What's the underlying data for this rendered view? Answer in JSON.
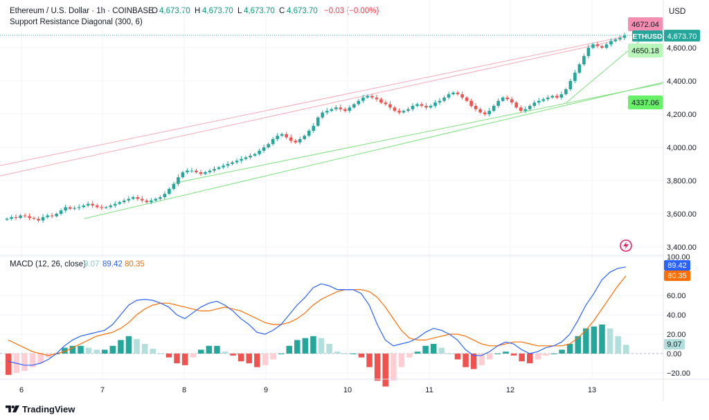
{
  "header": {
    "symbol_line": "Ethereum / U.S. Dollar · 1h · COINBASE",
    "open_label": "O",
    "open": "4,673.70",
    "high_label": "H",
    "high": "4,673.70",
    "low_label": "L",
    "low": "4,673.70",
    "close_label": "C",
    "close": "4,673.70",
    "change": "−0.03 (−0.00%)",
    "indicator": "Support Resistance Diagonal (300, 6)",
    "currency": "USD"
  },
  "price_axis": {
    "ticks": [
      3400,
      3600,
      3800,
      4000,
      4200,
      4400,
      4600
    ],
    "tick_labels": [
      "3,400.00",
      "3,600.00",
      "3,800.00",
      "4,000.00",
      "4,200.00",
      "4,400.00",
      "4,600.00"
    ]
  },
  "price_tags": {
    "resistance": "4672.04",
    "ticker": "ETHUSD",
    "last": "4,673.70",
    "support_upper": "4650.18",
    "support_lower": "4337.06"
  },
  "macd": {
    "label": "MACD (12, 26, close)",
    "hist_value": "9.07",
    "macd_value": "89.42",
    "signal_value": "80.35",
    "ticks": [
      -20,
      0,
      20,
      40,
      60,
      100
    ],
    "tick_labels": [
      "−20.00",
      "0.00",
      "20.00",
      "40.00",
      "60.00",
      "100.00"
    ]
  },
  "time_axis": {
    "labels": [
      "6",
      "7",
      "8",
      "9",
      "10",
      "11",
      "12",
      "13"
    ]
  },
  "footer": {
    "brand": "TradingView"
  },
  "colors": {
    "up": "#26a69a",
    "down": "#ef5350",
    "macd": "#2962ff",
    "signal": "#ff6d00",
    "resistance": "#f7a8b8",
    "support": "#7be07b",
    "hist_up": "#26a69a",
    "hist_up_light": "#b2dfdb",
    "hist_down": "#ef5350",
    "hist_down_light": "#ffcdd2"
  },
  "chart_data": {
    "type": "candlestick",
    "price_range": [
      3380,
      4760
    ],
    "candle_close_path": [
      3570,
      3580,
      3575,
      3590,
      3585,
      3575,
      3570,
      3560,
      3580,
      3590,
      3585,
      3600,
      3620,
      3640,
      3630,
      3635,
      3640,
      3650,
      3660,
      3650,
      3640,
      3635,
      3640,
      3650,
      3660,
      3670,
      3680,
      3690,
      3700,
      3690,
      3680,
      3670,
      3680,
      3690,
      3700,
      3720,
      3750,
      3780,
      3820,
      3850,
      3860,
      3860,
      3850,
      3840,
      3850,
      3860,
      3870,
      3880,
      3890,
      3900,
      3910,
      3920,
      3930,
      3940,
      3950,
      3960,
      3980,
      4000,
      4020,
      4050,
      4070,
      4080,
      4060,
      4040,
      4030,
      4050,
      4070,
      4100,
      4130,
      4180,
      4210,
      4220,
      4230,
      4240,
      4230,
      4220,
      4240,
      4260,
      4280,
      4300,
      4310,
      4300,
      4290,
      4270,
      4260,
      4240,
      4220,
      4210,
      4220,
      4230,
      4250,
      4260,
      4250,
      4240,
      4250,
      4270,
      4280,
      4300,
      4320,
      4330,
      4320,
      4300,
      4280,
      4250,
      4230,
      4210,
      4200,
      4220,
      4250,
      4280,
      4300,
      4290,
      4270,
      4240,
      4220,
      4230,
      4250,
      4270,
      4280,
      4290,
      4300,
      4310,
      4300,
      4320,
      4350,
      4400,
      4450,
      4500,
      4550,
      4600,
      4620,
      4610,
      4600,
      4620,
      4640,
      4650,
      4660,
      4673.7
    ],
    "macd_line": [
      -8,
      -10,
      -12,
      -12,
      -10,
      -6,
      0,
      8,
      14,
      18,
      20,
      22,
      24,
      30,
      40,
      50,
      55,
      56,
      55,
      52,
      48,
      40,
      36,
      42,
      48,
      52,
      54,
      50,
      44,
      36,
      30,
      22,
      20,
      24,
      30,
      40,
      50,
      58,
      68,
      72,
      70,
      66,
      66,
      66,
      62,
      50,
      30,
      14,
      8,
      10,
      12,
      16,
      22,
      26,
      24,
      20,
      14,
      4,
      -2,
      -2,
      2,
      8,
      12,
      10,
      4,
      0,
      2,
      6,
      8,
      12,
      20,
      34,
      50,
      62,
      76,
      84,
      88,
      89.42
    ],
    "signal_line": [
      14,
      10,
      6,
      2,
      0,
      -2,
      0,
      2,
      6,
      10,
      14,
      18,
      20,
      22,
      26,
      32,
      40,
      46,
      50,
      52,
      52,
      50,
      48,
      46,
      44,
      44,
      46,
      48,
      46,
      44,
      40,
      36,
      32,
      30,
      30,
      32,
      36,
      42,
      50,
      56,
      60,
      64,
      66,
      66,
      66,
      64,
      58,
      48,
      36,
      24,
      16,
      14,
      14,
      16,
      18,
      20,
      20,
      18,
      14,
      10,
      8,
      8,
      10,
      12,
      12,
      10,
      8,
      8,
      8,
      8,
      10,
      16,
      24,
      34,
      46,
      58,
      70,
      80.35
    ],
    "macd_histogram": [
      -22,
      -20,
      -18,
      -14,
      -10,
      -4,
      0,
      6,
      8,
      8,
      6,
      4,
      4,
      8,
      14,
      18,
      15,
      10,
      5,
      0,
      -4,
      -10,
      -12,
      -4,
      4,
      8,
      8,
      2,
      -2,
      -8,
      -10,
      -14,
      -12,
      -6,
      0,
      8,
      14,
      16,
      18,
      16,
      10,
      2,
      0,
      0,
      -4,
      -14,
      -28,
      -34,
      -28,
      -14,
      -4,
      2,
      8,
      10,
      6,
      0,
      -6,
      -14,
      -16,
      -12,
      -6,
      0,
      2,
      -2,
      -8,
      -10,
      -6,
      -2,
      0,
      4,
      10,
      18,
      26,
      28,
      30,
      26,
      18,
      9.07
    ],
    "resistance_lines": [
      {
        "from": [
          0,
          3828
        ],
        "to": [
          890,
          4644
        ]
      },
      {
        "from": [
          0,
          3890
        ],
        "to": [
          900,
          4666
        ]
      }
    ],
    "support_lines": [
      {
        "from": [
          121,
          3570
        ],
        "to": [
          958,
          4392
        ]
      },
      {
        "from": [
          252,
          3785
        ],
        "to": [
          958,
          4385
        ]
      },
      {
        "from": [
          818,
          4270
        ],
        "to": [
          958,
          4760
        ]
      }
    ],
    "time_labels": [
      "6",
      "7",
      "8",
      "9",
      "10",
      "11",
      "12",
      "13"
    ]
  }
}
